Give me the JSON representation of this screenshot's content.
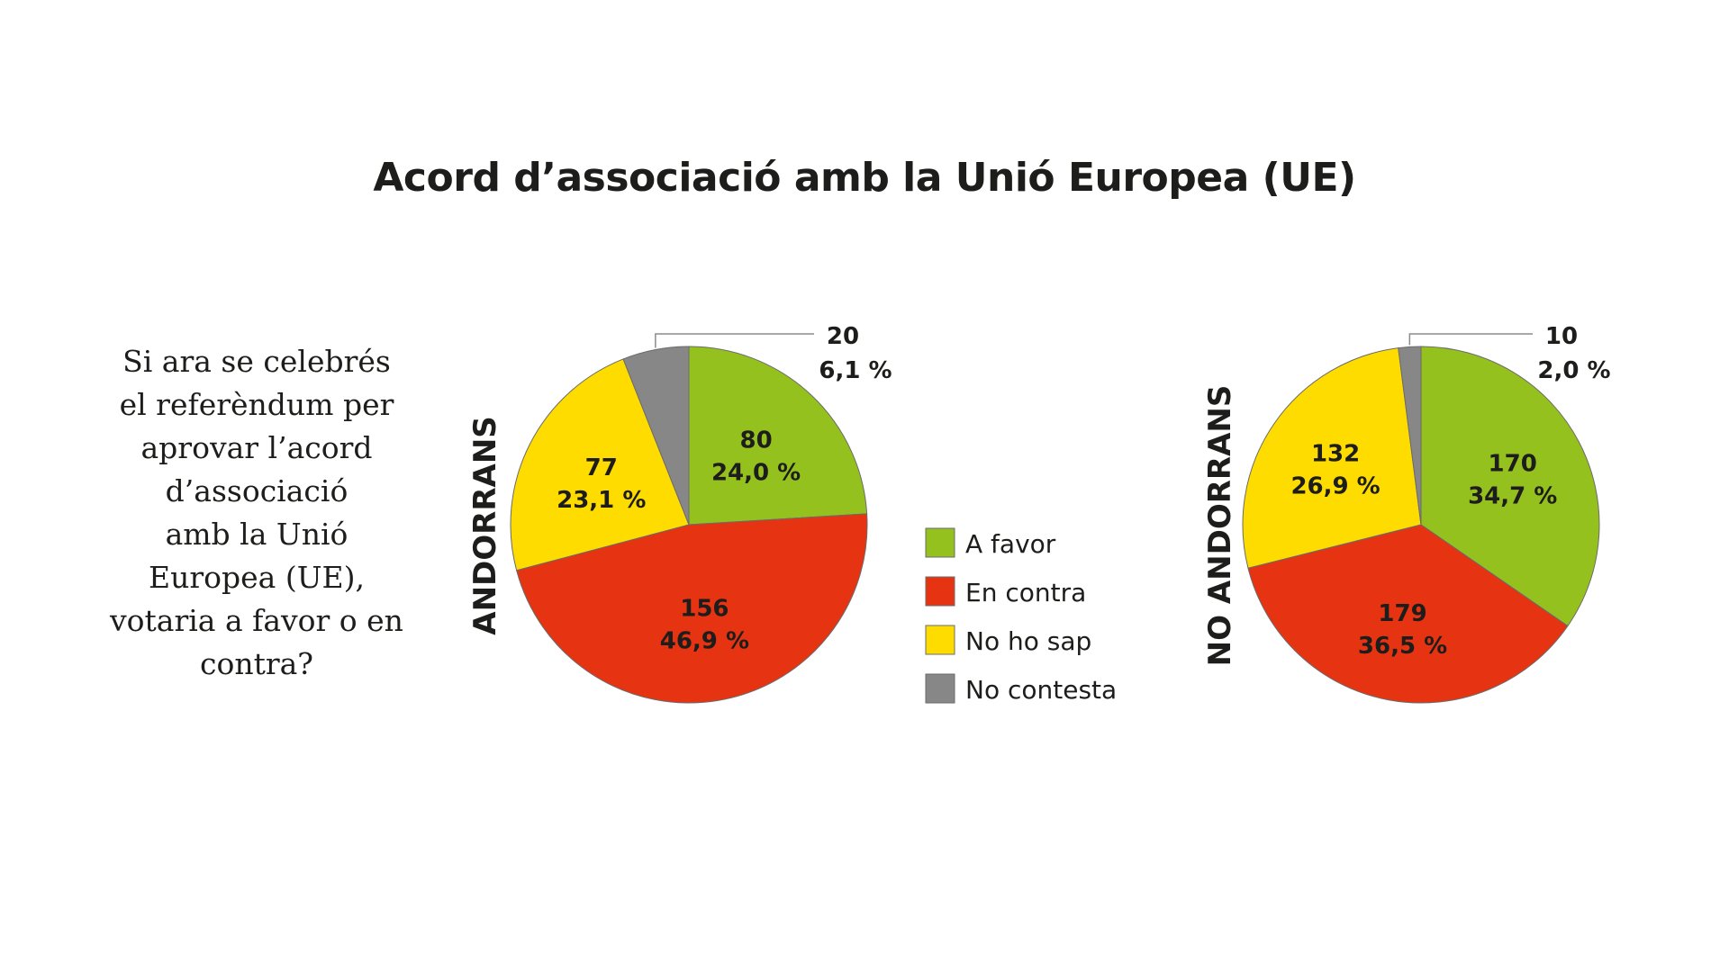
{
  "title": "Acord d’associació amb la Unió Europea (UE)",
  "question_lines": [
    "Si ara se celebrés",
    "el referèndum per",
    "aprovar l’acord",
    "d’associació",
    "amb la Unió",
    "Europea (UE),",
    "votaria a favor o en",
    "contra?"
  ],
  "legend": [
    {
      "label": "A favor",
      "color": "#95c11f"
    },
    {
      "label": "En contra",
      "color": "#e63312"
    },
    {
      "label": "No ho sap",
      "color": "#ffdc00"
    },
    {
      "label": "No contesta",
      "color": "#878787"
    }
  ],
  "chart_data": [
    {
      "type": "pie",
      "name": "ANDORRANS",
      "categories": [
        "A favor",
        "En contra",
        "No ho sap",
        "No contesta"
      ],
      "values": [
        80,
        156,
        77,
        20
      ],
      "value_labels": [
        "80",
        "156",
        "77",
        "20"
      ],
      "percent_labels": [
        "24,0 %",
        "46,9 %",
        "23,1 %",
        "6,1 %"
      ],
      "colors": [
        "#95c11f",
        "#e63312",
        "#ffdc00",
        "#878787"
      ]
    },
    {
      "type": "pie",
      "name": "NO ANDORRANS",
      "categories": [
        "A favor",
        "En contra",
        "No ho sap",
        "No contesta"
      ],
      "values": [
        170,
        179,
        132,
        10
      ],
      "value_labels": [
        "170",
        "179",
        "132",
        "10"
      ],
      "percent_labels": [
        "34,7 %",
        "36,5 %",
        "26,9 %",
        "2,0 %"
      ],
      "colors": [
        "#95c11f",
        "#e63312",
        "#ffdc00",
        "#878787"
      ]
    }
  ]
}
